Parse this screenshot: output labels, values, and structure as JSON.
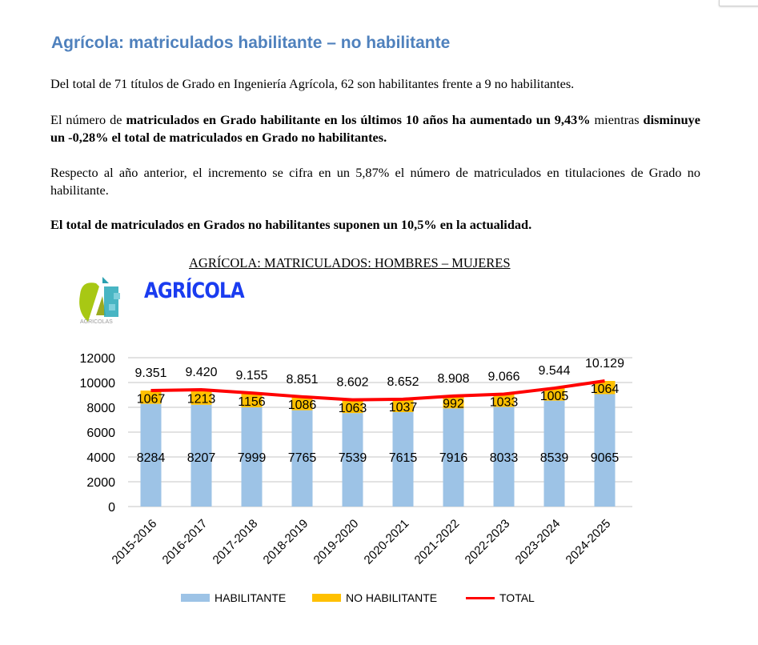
{
  "heading": "Agrícola: matriculados habilitante – no habilitante",
  "paragraphs": {
    "p1": "Del total de 71 títulos de Grado en Ingeniería Agrícola, 62 son habilitantes frente a 9 no habilitantes.",
    "p2_a": "El número de ",
    "p2_b": "matriculados en Grado habilitante en los últimos 10 años ha aumentado un 9,43%",
    "p2_c": " mientras ",
    "p2_d": "disminuye un -0,28% el total de matriculados en Grado no habilitantes.",
    "p3": "Respecto al año anterior, el incremento se cifra en un 5,87% el número de matriculados en titulaciones de Grado no habilitante.",
    "p4": "El total de matriculados en Grados no habilitantes suponen un 10,5% en la actualidad."
  },
  "logo": {
    "caption": "AGRICOLAS",
    "brand": "AGRÍCOLA"
  },
  "colors": {
    "habilitante": "#9dc3e6",
    "no_habilitante": "#ffc000",
    "total": "#ff0000",
    "heading": "#4f81bd"
  },
  "chart_data": {
    "type": "bar",
    "stacked": true,
    "title": "AGRÍCOLA: MATRICULADOS: HOMBRES – MUJERES",
    "categories": [
      "2015-2016",
      "2016-2017",
      "2017-2018",
      "2018-2019",
      "2019-2020",
      "2020-2021",
      "2021-2022",
      "2022-2023",
      "2023-2024",
      "2024-2025"
    ],
    "series": [
      {
        "name": "HABILITANTE",
        "type": "bar",
        "values": [
          8284,
          8207,
          7999,
          7765,
          7539,
          7615,
          7916,
          8033,
          8539,
          9065
        ]
      },
      {
        "name": "NO HABILITANTE",
        "type": "bar",
        "values": [
          1067,
          1213,
          1156,
          1086,
          1063,
          1037,
          992,
          1033,
          1005,
          1064
        ]
      },
      {
        "name": "TOTAL",
        "type": "line",
        "values": [
          9351,
          9420,
          9155,
          8851,
          8602,
          8652,
          8908,
          9066,
          9544,
          10129
        ],
        "labels": [
          "9.351",
          "9.420",
          "9.155",
          "8.851",
          "8.602",
          "8.652",
          "8.908",
          "9.066",
          "9.544",
          "10.129"
        ]
      }
    ],
    "yticks": [
      0,
      2000,
      4000,
      6000,
      8000,
      10000,
      12000
    ],
    "ylim": [
      0,
      12000
    ],
    "grid": true,
    "legend": "bottom"
  }
}
